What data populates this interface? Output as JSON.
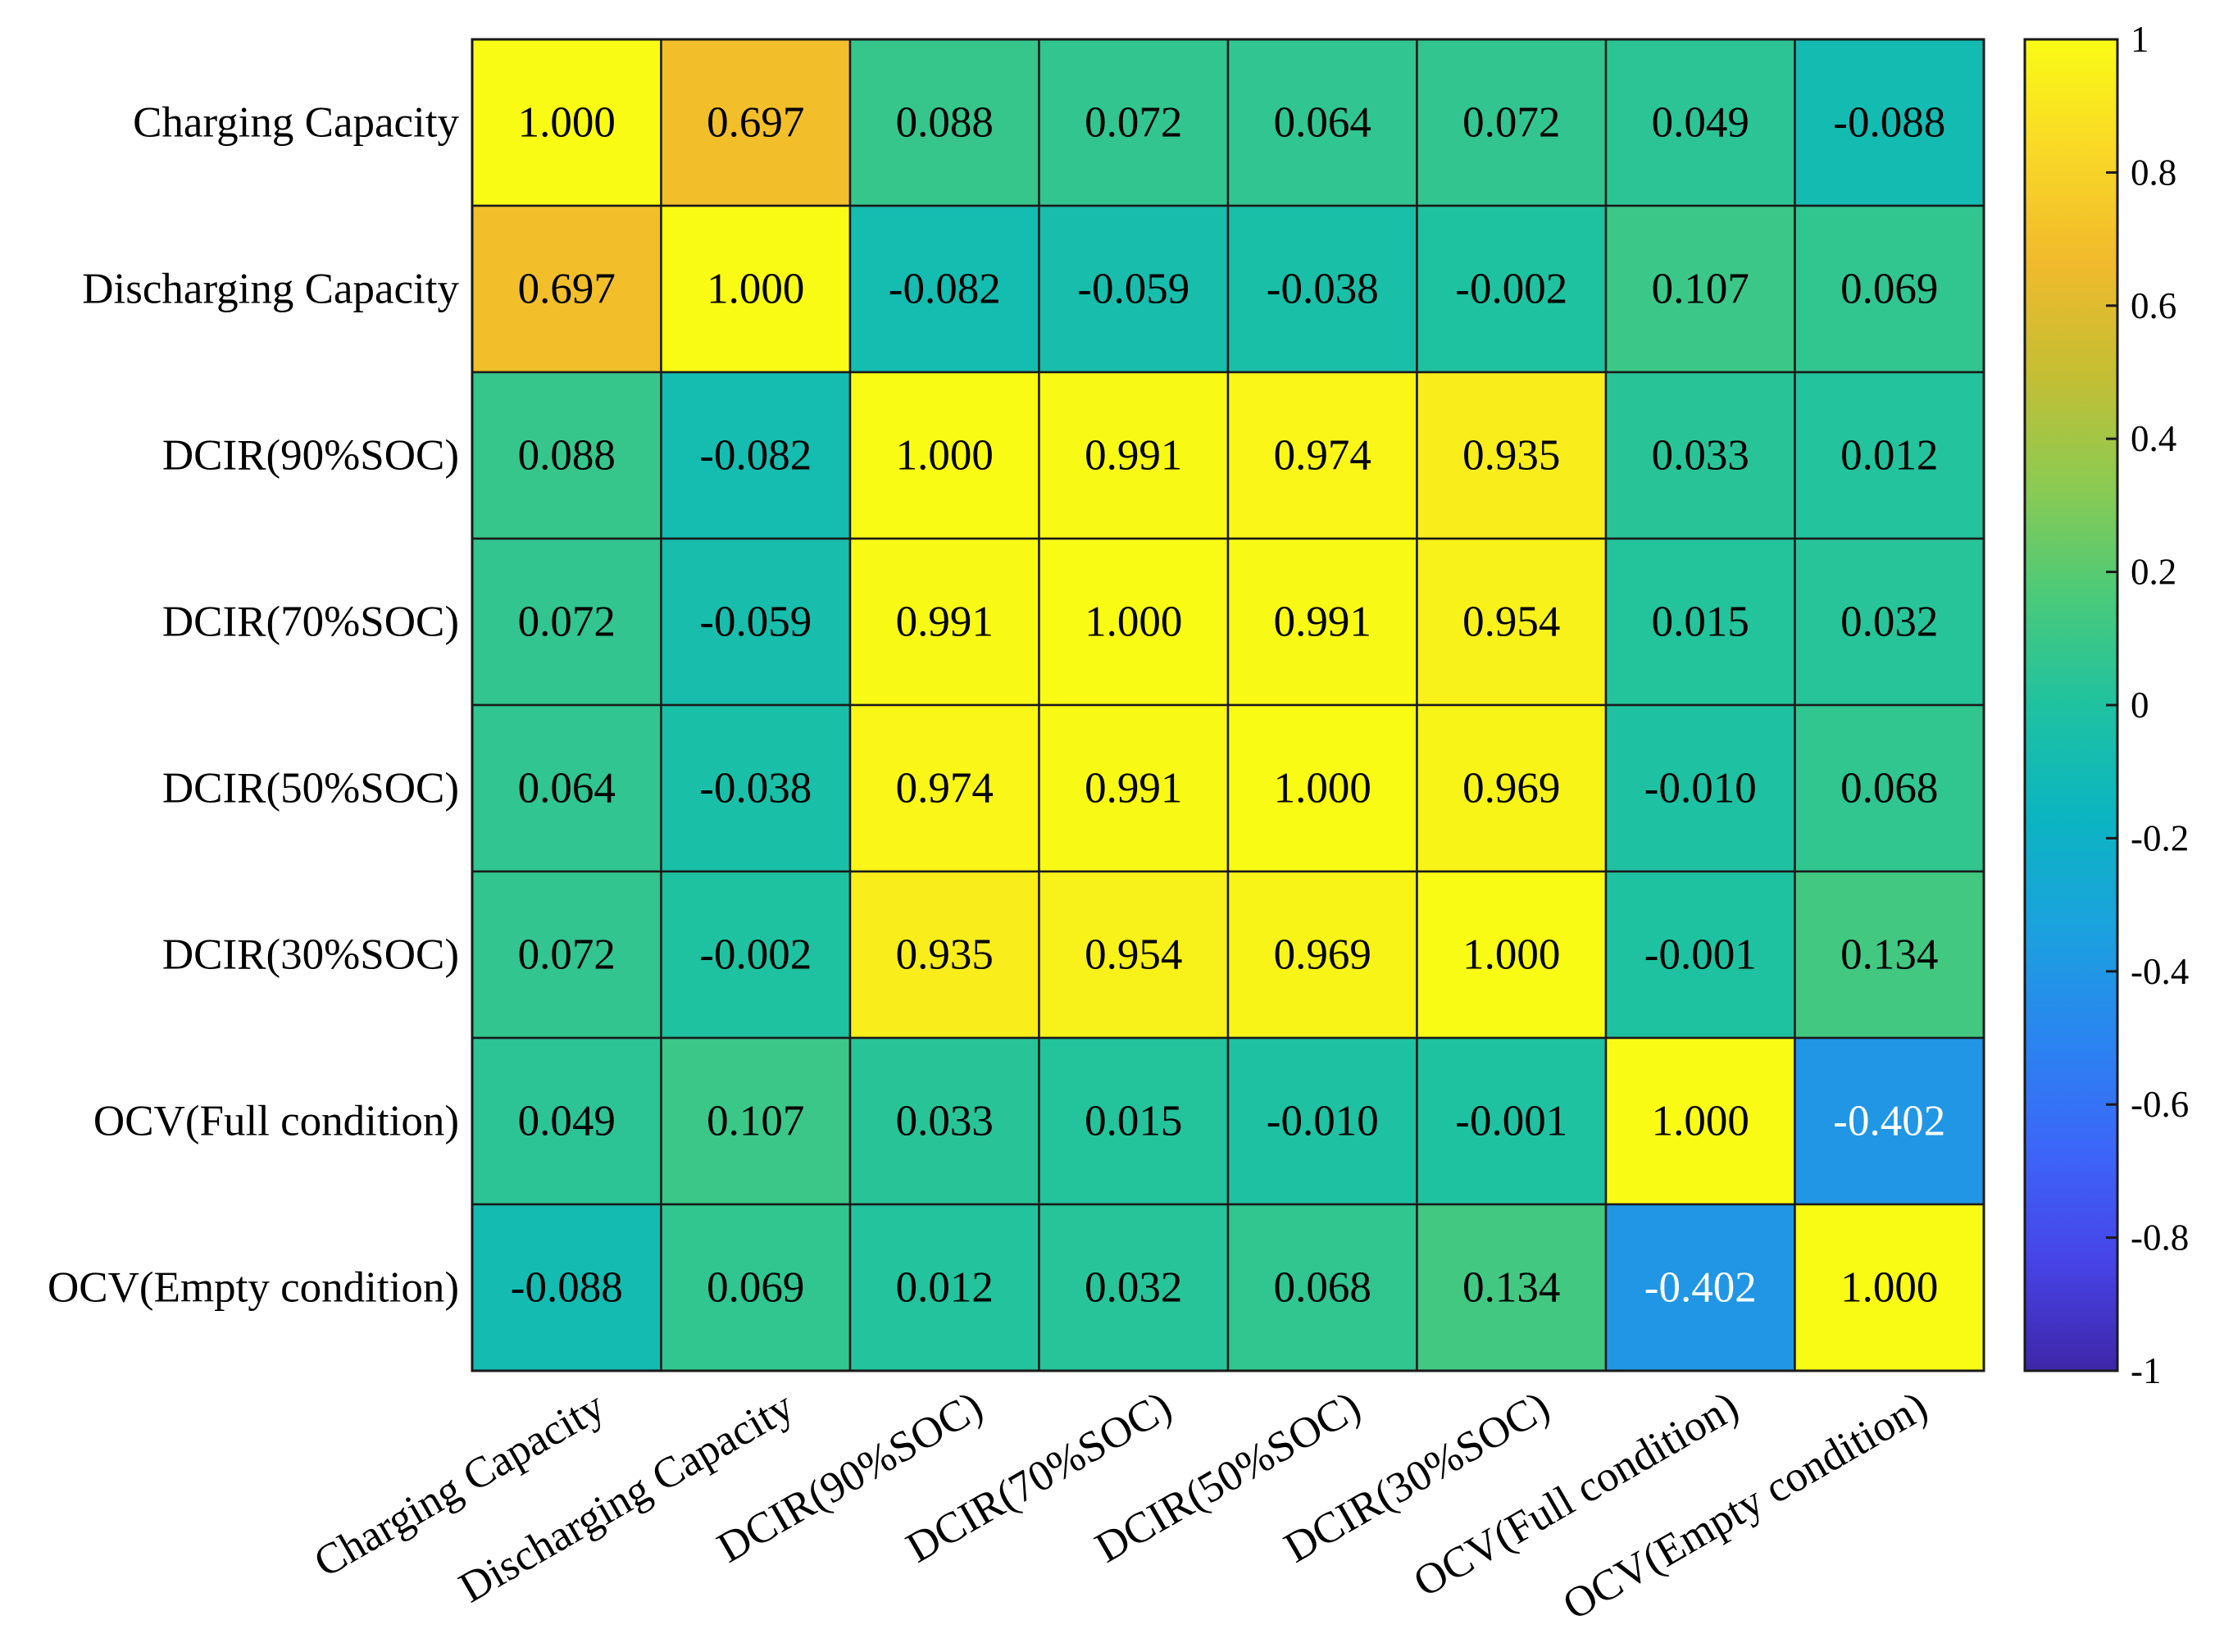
{
  "chart_data": {
    "type": "heatmap",
    "title": "",
    "xlabel": "",
    "ylabel": "",
    "labels": [
      "Charging Capacity",
      "Discharging Capacity",
      "DCIR(90%SOC)",
      "DCIR(70%SOC)",
      "DCIR(50%SOC)",
      "DCIR(30%SOC)",
      "OCV(Full condition)",
      "OCV(Empty condition)"
    ],
    "values": [
      [
        1.0,
        0.697,
        0.088,
        0.072,
        0.064,
        0.072,
        0.049,
        -0.088
      ],
      [
        0.697,
        1.0,
        -0.082,
        -0.059,
        -0.038,
        -0.002,
        0.107,
        0.069
      ],
      [
        0.088,
        -0.082,
        1.0,
        0.991,
        0.974,
        0.935,
        0.033,
        0.012
      ],
      [
        0.072,
        -0.059,
        0.991,
        1.0,
        0.991,
        0.954,
        0.015,
        0.032
      ],
      [
        0.064,
        -0.038,
        0.974,
        0.991,
        1.0,
        0.969,
        -0.01,
        0.068
      ],
      [
        0.072,
        -0.002,
        0.935,
        0.954,
        0.969,
        1.0,
        -0.001,
        0.134
      ],
      [
        0.049,
        0.107,
        0.033,
        0.015,
        -0.01,
        -0.001,
        1.0,
        -0.402
      ],
      [
        -0.088,
        0.069,
        0.012,
        0.032,
        0.068,
        0.134,
        -0.402,
        1.0
      ]
    ],
    "value_labels": [
      [
        "1.000",
        "0.697",
        "0.088",
        "0.072",
        "0.064",
        "0.072",
        "0.049",
        "-0.088"
      ],
      [
        "0.697",
        "1.000",
        "-0.082",
        "-0.059",
        "-0.038",
        "-0.002",
        "0.107",
        "0.069"
      ],
      [
        "0.088",
        "-0.082",
        "1.000",
        "0.991",
        "0.974",
        "0.935",
        "0.033",
        "0.012"
      ],
      [
        "0.072",
        "-0.059",
        "0.991",
        "1.000",
        "0.991",
        "0.954",
        "0.015",
        "0.032"
      ],
      [
        "0.064",
        "-0.038",
        "0.974",
        "0.991",
        "1.000",
        "0.969",
        "-0.010",
        "0.068"
      ],
      [
        "0.072",
        "-0.002",
        "0.935",
        "0.954",
        "0.969",
        "1.000",
        "-0.001",
        "0.134"
      ],
      [
        "0.049",
        "0.107",
        "0.033",
        "0.015",
        "-0.010",
        "-0.001",
        "1.000",
        "-0.402"
      ],
      [
        "-0.088",
        "0.069",
        "0.012",
        "0.032",
        "0.068",
        "0.134",
        "-0.402",
        "1.000"
      ]
    ],
    "colorbar": {
      "range": [
        -1,
        1
      ],
      "ticks": [
        1,
        0.8,
        0.6,
        0.4,
        0.2,
        0,
        -0.2,
        -0.4,
        -0.6,
        -0.8,
        -1
      ],
      "tick_labels": [
        "1",
        "0.8",
        "0.6",
        "0.4",
        "0.2",
        "0",
        "-0.2",
        "-0.4",
        "-0.6",
        "-0.8",
        "-1"
      ],
      "colormap": "parula",
      "colormap_stops": [
        "#3e26a8",
        "#4744e8",
        "#3c66f9",
        "#2a85f0",
        "#1ba2de",
        "#0bb5c1",
        "#1fc2a0",
        "#4bca79",
        "#8dca51",
        "#c5be33",
        "#f1ba2c",
        "#f9d827",
        "#f9fb15"
      ]
    }
  }
}
